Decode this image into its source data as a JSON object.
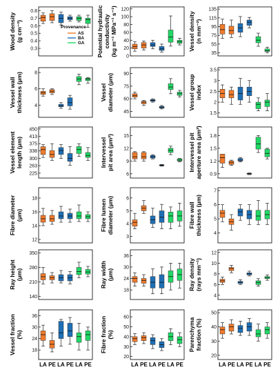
{
  "legend": {
    "title": "Provenance",
    "items": [
      {
        "name": "AS",
        "color": "#F07B2C"
      },
      {
        "name": "BA",
        "color": "#1F6FB5"
      },
      {
        "name": "GA",
        "color": "#22D866"
      }
    ]
  },
  "x_axis_labels": [
    "LA",
    "PE",
    "LA",
    "PE",
    "LA",
    "PE"
  ],
  "chart_data": [
    {
      "type": "box",
      "ylabel": [
        "Wood density",
        "(g cm⁻³)"
      ],
      "ylim": [
        0.2,
        0.85
      ],
      "ticks": [
        0.3,
        0.4,
        0.5,
        0.6,
        0.7,
        0.8
      ],
      "boxes": [
        [
          0.63,
          0.66,
          0.71,
          0.74,
          0.77
        ],
        [
          0.64,
          0.67,
          0.72,
          0.76,
          0.8
        ],
        [
          0.61,
          0.64,
          0.7,
          0.75,
          0.78
        ],
        [
          0.66,
          0.68,
          0.7,
          0.72,
          0.74
        ],
        [
          0.65,
          0.67,
          0.7,
          0.72,
          0.74
        ],
        [
          0.58,
          0.63,
          0.68,
          0.7,
          0.74
        ]
      ]
    },
    {
      "type": "box",
      "ylabel": [
        "Potential hydraulic",
        "conductivity",
        "(kg m⁻¹ MPa⁻¹ s⁻¹)"
      ],
      "ylim": [
        0,
        125
      ],
      "ticks": [
        0,
        20,
        40,
        60,
        80,
        100,
        120
      ],
      "boxes": [
        [
          12,
          18,
          24,
          30,
          36
        ],
        [
          15,
          20,
          28,
          34,
          38
        ],
        [
          18,
          24,
          28,
          34,
          40
        ],
        [
          10,
          14,
          18,
          24,
          30
        ],
        [
          25,
          35,
          48,
          66,
          102
        ],
        [
          28,
          32,
          36,
          40,
          45
        ]
      ]
    },
    {
      "type": "box",
      "ylabel": [
        "Vessel density",
        "(n mm⁻²)"
      ],
      "ylim": [
        28,
        140
      ],
      "ticks": [
        35,
        55,
        75,
        95,
        115,
        135
      ],
      "boxes": [
        [
          68,
          78,
          88,
          100,
          112
        ],
        [
          70,
          78,
          86,
          96,
          110
        ],
        [
          72,
          82,
          92,
          102,
          118
        ],
        [
          92,
          98,
          105,
          110,
          116
        ],
        [
          50,
          58,
          64,
          72,
          80
        ],
        [
          35,
          38,
          40,
          44,
          48
        ]
      ]
    },
    {
      "type": "box",
      "ylabel": [
        "Vessel wall",
        "thickness (μm)"
      ],
      "ylim": [
        2.5,
        8.6
      ],
      "ticks": [
        4,
        6,
        8
      ],
      "boxes": [
        [
          5.1,
          5.3,
          5.5,
          5.7,
          6.0
        ],
        [
          5.3,
          5.5,
          5.7,
          5.9,
          6.0
        ],
        [
          3.6,
          3.8,
          3.9,
          4.1,
          4.3
        ],
        [
          3.5,
          3.9,
          4.3,
          4.9,
          5.2
        ],
        [
          6.5,
          6.9,
          7.2,
          7.5,
          7.8
        ],
        [
          6.7,
          7.0,
          7.2,
          7.3,
          7.4
        ]
      ]
    },
    {
      "type": "box",
      "ylabel": [
        "Vessel",
        "diameter (μm)"
      ],
      "ylim": [
        38,
        97
      ],
      "ticks": [
        45,
        60,
        75,
        90
      ],
      "boxes": [
        [
          60,
          62,
          64,
          66,
          68
        ],
        [
          52,
          54,
          56,
          57,
          58
        ],
        [
          56,
          57,
          58,
          59,
          60
        ],
        [
          48,
          49,
          50,
          51,
          52
        ],
        [
          66,
          71,
          74,
          78,
          84
        ],
        [
          62,
          64,
          66,
          68,
          70
        ]
      ]
    },
    {
      "type": "box",
      "ylabel": [
        "Vessel group",
        "index"
      ],
      "ylim": [
        1.3,
        3.6
      ],
      "ticks": [
        1.5,
        2.0,
        2.5,
        3.0,
        3.5
      ],
      "boxes": [
        [
          2.0,
          2.2,
          2.4,
          2.6,
          2.8
        ],
        [
          1.9,
          2.2,
          2.35,
          2.55,
          2.7
        ],
        [
          1.9,
          2.1,
          2.4,
          2.7,
          3.1
        ],
        [
          2.0,
          2.3,
          2.5,
          2.7,
          3.0
        ],
        [
          1.6,
          1.7,
          1.9,
          2.0,
          2.2
        ],
        [
          1.6,
          1.8,
          2.0,
          2.1,
          2.4
        ]
      ]
    },
    {
      "type": "box",
      "ylabel": [
        "Vessel element",
        "length (μm)"
      ],
      "ylim": [
        200,
        460
      ],
      "ticks": [
        225,
        263,
        300,
        338,
        375,
        413,
        450
      ],
      "boxes": [
        [
          305,
          320,
          345,
          360,
          370
        ],
        [
          290,
          305,
          320,
          340,
          375
        ],
        [
          300,
          320,
          340,
          355,
          370
        ],
        [
          265,
          285,
          300,
          325,
          360
        ],
        [
          310,
          325,
          345,
          360,
          375
        ],
        [
          290,
          305,
          315,
          330,
          355
        ]
      ]
    },
    {
      "type": "box",
      "ylabel": [
        "Intervessel",
        "pit area (μm²)"
      ],
      "ylim": [
        5,
        17
      ],
      "ticks": [
        6,
        9,
        12,
        15
      ],
      "boxes": [
        [
          9,
          9.5,
          10,
          11,
          11.2
        ],
        [
          9,
          9.5,
          10,
          11,
          11.2
        ],
        [
          9.5,
          9.7,
          10,
          10.3,
          10.5
        ],
        [
          7.8,
          7.9,
          8,
          8.1,
          8.2
        ],
        [
          10.5,
          11,
          11.5,
          12,
          12.5
        ],
        [
          8.8,
          9,
          9.2,
          9.5,
          9.6
        ]
      ]
    },
    {
      "type": "box",
      "ylabel": [
        "Intervessel pit",
        "aperture area (μm²)"
      ],
      "ylim": [
        0.8,
        2.0
      ],
      "ticks": [
        0.9,
        1.2,
        1.5,
        1.8
      ],
      "boxes": [
        [
          1.05,
          1.15,
          1.28,
          1.36,
          1.36
        ],
        [
          1.1,
          1.12,
          1.16,
          1.2,
          1.22
        ],
        [
          1.18,
          1.2,
          1.22,
          1.26,
          1.28
        ],
        [
          0.88,
          0.89,
          0.9,
          0.91,
          0.92
        ],
        [
          1.4,
          1.48,
          1.6,
          1.76,
          1.8
        ],
        [
          1.25,
          1.3,
          1.38,
          1.48,
          1.5
        ]
      ]
    },
    {
      "type": "box",
      "ylabel": [
        "Fibre diameter",
        "(μm)"
      ],
      "ylim": [
        11.5,
        19.5
      ],
      "ticks": [
        12,
        14,
        16,
        18
      ],
      "boxes": [
        [
          14,
          14.5,
          15,
          15.5,
          16.5
        ],
        [
          14.2,
          14.6,
          15,
          15.5,
          16.2
        ],
        [
          14.5,
          15,
          15.4,
          16,
          16.8
        ],
        [
          14.5,
          15,
          15.4,
          15.8,
          16.4
        ],
        [
          14.6,
          15,
          15.4,
          16,
          17
        ],
        [
          14.6,
          15,
          15.3,
          15.6,
          16
        ]
      ]
    },
    {
      "type": "box",
      "ylabel": [
        "Fibre lumen",
        "diameter (μm)"
      ],
      "ylim": [
        2.5,
        6.8
      ],
      "ticks": [
        3,
        4,
        5,
        6
      ],
      "boxes": [
        [
          3.6,
          3.8,
          4.1,
          4.3,
          4.8
        ],
        [
          4.8,
          5.0,
          5.2,
          5.4,
          5.8
        ],
        [
          3.7,
          4.0,
          4.3,
          4.6,
          5.2
        ],
        [
          3.6,
          4.1,
          4.5,
          5.0,
          5.5
        ],
        [
          3.6,
          4.1,
          4.6,
          4.9,
          5.3
        ],
        [
          3.8,
          4.2,
          4.6,
          5.0,
          5.6
        ]
      ]
    },
    {
      "type": "box",
      "ylabel": [
        "Fibre wall",
        "thickness (μm)"
      ],
      "ylim": [
        3.3,
        7.2
      ],
      "ticks": [
        4,
        5,
        6,
        7
      ],
      "boxes": [
        [
          4.8,
          5.1,
          5.4,
          5.6,
          6.0
        ],
        [
          4.2,
          4.6,
          4.8,
          5.0,
          5.3
        ],
        [
          4.9,
          5.2,
          5.5,
          5.7,
          6.0
        ],
        [
          4.6,
          5.0,
          5.3,
          5.6,
          6.0
        ],
        [
          4.6,
          4.9,
          5.2,
          5.6,
          6.3
        ],
        [
          4.6,
          5.0,
          5.3,
          5.6,
          6.1
        ]
      ]
    },
    {
      "type": "box",
      "ylabel": [
        "Ray height",
        "(μm)"
      ],
      "ylim": [
        125,
        365
      ],
      "ticks": [
        140,
        210,
        280,
        350
      ],
      "boxes": [
        [
          200,
          220,
          235,
          250,
          280
        ],
        [
          205,
          220,
          230,
          240,
          255
        ],
        [
          205,
          215,
          230,
          245,
          265
        ],
        [
          200,
          215,
          230,
          245,
          260
        ],
        [
          230,
          245,
          260,
          280,
          305
        ],
        [
          235,
          248,
          258,
          270,
          285
        ]
      ]
    },
    {
      "type": "box",
      "ylabel": [
        "Ray width",
        "(μm)"
      ],
      "ylim": [
        13,
        39
      ],
      "ticks": [
        18,
        24,
        30,
        36
      ],
      "boxes": [
        [
          20,
          22,
          24,
          25,
          27
        ],
        [
          20,
          21.5,
          23,
          24,
          26
        ],
        [
          16,
          19,
          22,
          25,
          29
        ],
        [
          16,
          19,
          22,
          26,
          30
        ],
        [
          18,
          22,
          25,
          28,
          32
        ],
        [
          19,
          23,
          26,
          29,
          32
        ]
      ]
    },
    {
      "type": "box",
      "ylabel": [
        "Ray density",
        "(rays mm⁻¹)"
      ],
      "ylim": [
        3.2,
        12.5
      ],
      "ticks": [
        4,
        6,
        8,
        10,
        12
      ],
      "boxes": [
        [
          6,
          6.4,
          6.7,
          7,
          7.4
        ],
        [
          8.2,
          8.6,
          9,
          9.2,
          9.6
        ],
        [
          6,
          6.2,
          6.4,
          6.6,
          6.9
        ],
        [
          7.6,
          7.8,
          8,
          8.2,
          8.5
        ],
        [
          5.7,
          6,
          6.4,
          6.7,
          7.1
        ],
        [
          6.8,
          7.1,
          7.3,
          7.5,
          7.8
        ]
      ]
    },
    {
      "type": "box",
      "ylabel": [
        "Vessel fraction",
        "(%)"
      ],
      "ylim": [
        13,
        39
      ],
      "ticks": [
        18,
        24,
        30,
        36
      ],
      "boxes": [
        [
          20,
          23,
          26,
          28,
          31
        ],
        [
          17,
          19,
          21,
          23,
          27
        ],
        [
          20,
          24,
          27,
          33,
          34
        ],
        [
          21,
          25,
          28,
          32,
          35
        ],
        [
          18,
          22,
          25,
          27,
          32
        ],
        [
          18,
          23,
          26,
          28,
          30
        ]
      ]
    },
    {
      "type": "box",
      "ylabel": [
        "Fibre fraction",
        "(%)"
      ],
      "ylim": [
        17,
        67
      ],
      "ticks": [
        20,
        30,
        40,
        50,
        60
      ],
      "boxes": [
        [
          32,
          35,
          38,
          40,
          43
        ],
        [
          33,
          36,
          39,
          41,
          44
        ],
        [
          28,
          32,
          36,
          39,
          42
        ],
        [
          26,
          29,
          32,
          35,
          38
        ],
        [
          32,
          36,
          40,
          44,
          48
        ],
        [
          30,
          33,
          37,
          40,
          44
        ]
      ]
    },
    {
      "type": "box",
      "ylabel": [
        "Parenchyma",
        "fraction (%)"
      ],
      "ylim": [
        17,
        52
      ],
      "ticks": [
        20,
        30,
        40,
        50
      ],
      "boxes": [
        [
          32,
          35,
          38,
          40,
          43
        ],
        [
          35,
          37,
          40,
          42,
          45
        ],
        [
          34,
          36,
          39,
          41,
          44
        ],
        [
          34,
          37,
          40,
          43,
          46
        ],
        [
          30,
          33,
          35,
          38,
          42
        ],
        [
          32,
          35,
          38,
          40,
          43
        ]
      ]
    }
  ]
}
